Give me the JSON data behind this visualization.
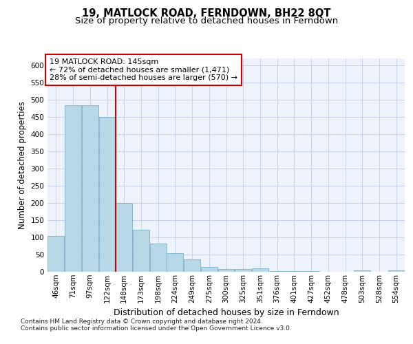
{
  "title": "19, MATLOCK ROAD, FERNDOWN, BH22 8QT",
  "subtitle": "Size of property relative to detached houses in Ferndown",
  "xlabel": "Distribution of detached houses by size in Ferndown",
  "ylabel": "Number of detached properties",
  "categories": [
    "46sqm",
    "71sqm",
    "97sqm",
    "122sqm",
    "148sqm",
    "173sqm",
    "198sqm",
    "224sqm",
    "249sqm",
    "275sqm",
    "300sqm",
    "325sqm",
    "351sqm",
    "376sqm",
    "401sqm",
    "427sqm",
    "452sqm",
    "478sqm",
    "503sqm",
    "528sqm",
    "554sqm"
  ],
  "values": [
    105,
    485,
    485,
    450,
    200,
    122,
    83,
    55,
    37,
    14,
    8,
    8,
    10,
    2,
    2,
    2,
    0,
    0,
    5,
    0,
    5
  ],
  "bar_color": "#b8d8e8",
  "bar_edge_color": "#7ab0c8",
  "vline_index": 3.5,
  "vline_color": "#cc0000",
  "annotation_text": "19 MATLOCK ROAD: 145sqm\n← 72% of detached houses are smaller (1,471)\n28% of semi-detached houses are larger (570) →",
  "annotation_box_color": "white",
  "annotation_box_edge": "#cc0000",
  "footer": "Contains HM Land Registry data © Crown copyright and database right 2024.\nContains public sector information licensed under the Open Government Licence v3.0.",
  "ylim": [
    0,
    620
  ],
  "yticks": [
    0,
    50,
    100,
    150,
    200,
    250,
    300,
    350,
    400,
    450,
    500,
    550,
    600
  ],
  "bg_color": "#eef2fb",
  "grid_color": "#c5cfe8",
  "title_fontsize": 10.5,
  "subtitle_fontsize": 9.5,
  "ylabel_fontsize": 8.5,
  "xlabel_fontsize": 9,
  "tick_fontsize": 7.5,
  "annotation_fontsize": 8
}
